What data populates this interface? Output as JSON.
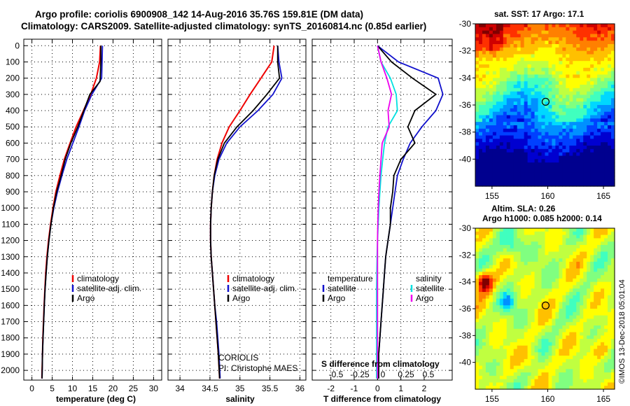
{
  "header": {
    "title_line1": "Argo profile: coriolis 6900908_142 14-Aug-2016 35.76S 159.81E (DM data)",
    "title_line2": "Climatology: CARS2009. Satellite-adjusted climatology: synTS_20160814.nc (0.85d earlier)"
  },
  "colors": {
    "climatology": "#ee0000",
    "satellite": "#1010cc",
    "argo": "#000000",
    "satellite_s": "#00e0e0",
    "argo_s": "#ee00ee"
  },
  "depth_axis": {
    "ticks": [
      0,
      100,
      200,
      300,
      400,
      500,
      600,
      700,
      800,
      900,
      1000,
      1100,
      1200,
      1300,
      1400,
      1500,
      1600,
      1700,
      1800,
      1900,
      2000
    ],
    "range": [
      -40,
      2060
    ]
  },
  "credit": {
    "line1": "CORIOLIS",
    "line2": "PI: Christophe MAES"
  },
  "side_text": "©IMOS 13-Dec-2018 05:01:04",
  "chart_data": [
    {
      "type": "line",
      "name": "temperature-panel",
      "xlabel": "temperature (deg C)",
      "xlim": [
        -2,
        32
      ],
      "xticks": [
        0,
        5,
        10,
        15,
        20,
        25,
        30
      ],
      "legend": [
        "climatology",
        "satellite-adj. clim.",
        "Argo"
      ],
      "series": [
        {
          "name": "climatology",
          "color": "#ee0000",
          "x": [
            16.9,
            16.7,
            15.9,
            14.5,
            12.7,
            10.9,
            9.4,
            8.0,
            6.9,
            5.9,
            5.2,
            4.6,
            4.1,
            3.7,
            3.4,
            3.2,
            3.0,
            2.85,
            2.7,
            2.6,
            2.45
          ],
          "depth": [
            0,
            100,
            200,
            300,
            400,
            500,
            600,
            700,
            800,
            900,
            1000,
            1100,
            1200,
            1300,
            1400,
            1500,
            1600,
            1700,
            1800,
            1900,
            2050
          ]
        },
        {
          "name": "satellite-adj. clim.",
          "color": "#1010cc",
          "x": [
            17.4,
            17.3,
            17.2,
            14.8,
            13.0,
            11.6,
            10.1,
            8.6,
            7.4,
            6.3,
            5.4,
            4.7,
            4.2,
            3.8,
            3.5,
            3.25,
            3.05,
            2.9,
            2.75,
            2.6,
            2.5
          ],
          "depth": [
            0,
            100,
            200,
            300,
            400,
            500,
            600,
            700,
            800,
            900,
            1000,
            1100,
            1200,
            1300,
            1400,
            1500,
            1600,
            1700,
            1800,
            1900,
            2050
          ]
        },
        {
          "name": "Argo",
          "color": "#000000",
          "x": [
            17.0,
            17.0,
            16.8,
            14.3,
            12.8,
            11.3,
            9.6,
            8.2,
            7.2,
            6.1,
            5.3,
            4.7,
            4.2,
            3.8,
            3.5,
            3.25,
            3.05,
            2.9,
            2.75,
            2.6,
            2.5
          ],
          "depth": [
            0,
            100,
            220,
            300,
            400,
            500,
            600,
            700,
            800,
            900,
            1000,
            1100,
            1200,
            1300,
            1400,
            1500,
            1600,
            1700,
            1800,
            1900,
            2050
          ]
        }
      ]
    },
    {
      "type": "line",
      "name": "salinity-panel",
      "xlabel": "salinity",
      "xlim": [
        33.8,
        36.1
      ],
      "xticks": [
        34,
        34.5,
        35,
        35.5,
        36
      ],
      "legend": [
        "climatology",
        "satellite-adj. clim.",
        "Argo"
      ],
      "series": [
        {
          "name": "climatology",
          "color": "#ee0000",
          "x": [
            35.57,
            35.53,
            35.35,
            35.17,
            35.0,
            34.82,
            34.7,
            34.62,
            34.57,
            34.54,
            34.52,
            34.51,
            34.51,
            34.52,
            34.54,
            34.56,
            34.58,
            34.6,
            34.62,
            34.64,
            34.66
          ],
          "depth": [
            0,
            100,
            200,
            300,
            400,
            500,
            600,
            700,
            800,
            900,
            1000,
            1100,
            1200,
            1300,
            1400,
            1500,
            1600,
            1700,
            1800,
            1900,
            2050
          ]
        },
        {
          "name": "satellite-adj. clim.",
          "color": "#1010cc",
          "x": [
            35.63,
            35.65,
            35.7,
            35.55,
            35.3,
            35.0,
            34.78,
            34.65,
            34.58,
            34.54,
            34.52,
            34.51,
            34.51,
            34.52,
            34.54,
            34.56,
            34.58,
            34.61,
            34.63,
            34.65,
            34.67
          ],
          "depth": [
            0,
            100,
            200,
            300,
            400,
            500,
            600,
            700,
            800,
            900,
            1000,
            1100,
            1200,
            1300,
            1400,
            1500,
            1600,
            1700,
            1800,
            1900,
            2050
          ]
        },
        {
          "name": "Argo",
          "color": "#000000",
          "x": [
            35.63,
            35.63,
            35.66,
            35.45,
            35.22,
            34.95,
            34.74,
            34.63,
            34.57,
            34.54,
            34.52,
            34.51,
            34.51,
            34.52,
            34.54,
            34.56,
            34.58,
            34.6,
            34.62,
            34.64,
            34.66
          ],
          "depth": [
            0,
            100,
            200,
            300,
            400,
            500,
            600,
            700,
            800,
            900,
            1000,
            1100,
            1200,
            1300,
            1400,
            1500,
            1600,
            1700,
            1800,
            1900,
            2050
          ]
        }
      ]
    },
    {
      "type": "line",
      "name": "difference-panel",
      "xlabel": "T difference from climatology",
      "xlim": [
        -2.8,
        3.2
      ],
      "xticks": [
        -2,
        -1,
        0,
        1,
        2
      ],
      "secondary_xlabel": "S difference from climatology",
      "secondary_xticks": [
        -0.5,
        -0.25,
        0,
        0.25,
        0.5
      ],
      "secondary_xtick_labels": [
        "-0.5",
        "-0.25",
        "0",
        "0.25",
        "0.5"
      ],
      "legend_left_title": "temperature",
      "legend_right_title": "salinity",
      "legend": [
        "satellite",
        "Argo",
        "satellite",
        "Argo"
      ],
      "series": [
        {
          "name": "T satellite",
          "color": "#1010cc",
          "x": [
            0.0,
            0.9,
            2.6,
            2.8,
            2.5,
            1.9,
            1.4,
            1.1,
            0.85,
            0.75,
            0.65,
            0.55,
            0.45,
            0.35,
            0.3,
            0.25,
            0.2,
            0.15,
            0.1,
            0.05,
            0.05
          ],
          "depth": [
            0,
            100,
            200,
            300,
            400,
            500,
            600,
            700,
            800,
            900,
            1000,
            1100,
            1200,
            1300,
            1400,
            1500,
            1600,
            1700,
            1800,
            1900,
            2050
          ]
        },
        {
          "name": "T Argo",
          "color": "#000000",
          "x": [
            0.0,
            0.6,
            1.5,
            2.5,
            1.6,
            1.3,
            1.6,
            1.0,
            0.7,
            0.65,
            0.55,
            0.55,
            0.45,
            0.35,
            0.3,
            0.25,
            0.2,
            0.15,
            0.1,
            0.05,
            0.05
          ],
          "depth": [
            0,
            100,
            200,
            300,
            400,
            500,
            600,
            700,
            800,
            900,
            1000,
            1100,
            1200,
            1300,
            1400,
            1500,
            1600,
            1700,
            1800,
            1900,
            2050
          ]
        },
        {
          "name": "S satellite",
          "color": "#00e0e0",
          "x": [
            0.0,
            0.15,
            0.55,
            0.8,
            0.85,
            0.45,
            0.3,
            0.22,
            0.15,
            0.1,
            0.06,
            0.03,
            0.0,
            -0.02,
            -0.03,
            -0.04,
            -0.04,
            -0.04,
            -0.04,
            -0.04,
            -0.04
          ],
          "depth": [
            0,
            100,
            200,
            300,
            400,
            500,
            600,
            700,
            800,
            900,
            1000,
            1100,
            1200,
            1300,
            1400,
            1500,
            1600,
            1700,
            1800,
            1900,
            2050
          ]
        },
        {
          "name": "S Argo",
          "color": "#ee00ee",
          "x": [
            0.0,
            0.15,
            0.4,
            0.6,
            0.45,
            0.5,
            0.2,
            0.15,
            0.1,
            0.06,
            0.03,
            0.01,
            0.0,
            0.0,
            0.0,
            0.0,
            0.0,
            0.0,
            0.0,
            0.0,
            0.0
          ],
          "depth": [
            0,
            100,
            200,
            300,
            400,
            500,
            600,
            700,
            800,
            900,
            1000,
            1100,
            1200,
            1300,
            1400,
            1500,
            1600,
            1700,
            1800,
            1900,
            2050
          ]
        }
      ]
    },
    {
      "type": "heatmap",
      "name": "sst-map",
      "title": "sat. SST: 17 Argo: 17.1",
      "xlim": [
        153.5,
        166
      ],
      "ylim": [
        -42,
        -30
      ],
      "xticks": [
        155,
        160,
        165
      ],
      "yticks": [
        -30,
        -32,
        -34,
        -36,
        -38,
        -40
      ],
      "marker": {
        "lon": 159.81,
        "lat": -35.76
      }
    },
    {
      "type": "heatmap",
      "name": "sla-map",
      "title_line1": "Altim. SLA: 0.26",
      "title_line2": "Argo h1000: 0.085 h2000: 0.14",
      "xlim": [
        153.5,
        166
      ],
      "ylim": [
        -42,
        -30
      ],
      "xticks": [
        155,
        160,
        165
      ],
      "yticks": [
        -30,
        -32,
        -34,
        -36,
        -38,
        -40
      ],
      "marker": {
        "lon": 159.81,
        "lat": -35.76
      }
    }
  ]
}
